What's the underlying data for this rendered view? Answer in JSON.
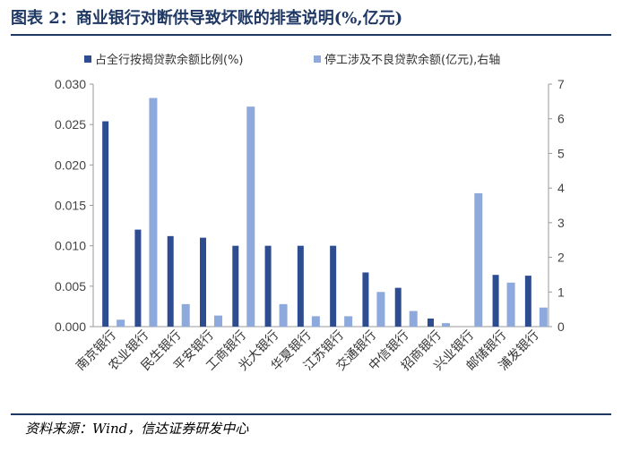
{
  "title": "图表 2：商业银行对断供导致坏账的排查说明(%,亿元)",
  "source": "资料来源：Wind，信达证券研发中心",
  "chart_data": {
    "type": "bar",
    "categories": [
      "南京银行",
      "农业银行",
      "民生银行",
      "平安银行",
      "工商银行",
      "光大银行",
      "华夏银行",
      "江苏银行",
      "交通银行",
      "中信银行",
      "招商银行",
      "兴业银行",
      "邮储银行",
      "浦发银行"
    ],
    "series": [
      {
        "name": "占全行按揭贷款余额比例(%)",
        "axis": "left",
        "color": "#2e4d91",
        "values": [
          0.0254,
          0.012,
          0.0112,
          0.011,
          0.01,
          0.01,
          0.01,
          0.01,
          0.0067,
          0.0048,
          0.001,
          0,
          0.0064,
          0.0063
        ]
      },
      {
        "name": "停工涉及不良贷款余额(亿元),右轴",
        "axis": "right",
        "color": "#8ea9db",
        "values": [
          0.2,
          6.6,
          0.65,
          0.32,
          6.35,
          0.65,
          0.3,
          0.3,
          1.0,
          0.45,
          0.1,
          3.85,
          1.27,
          0.55
        ]
      }
    ],
    "ylim": [
      0,
      0.03
    ],
    "y_ticks": [
      "0.000",
      "0.005",
      "0.010",
      "0.015",
      "0.020",
      "0.025",
      "0.030"
    ],
    "y2lim": [
      0,
      7
    ],
    "y2_ticks": [
      "0",
      "1",
      "2",
      "3",
      "4",
      "5",
      "6",
      "7"
    ],
    "legend_position": "top",
    "grid": false
  }
}
